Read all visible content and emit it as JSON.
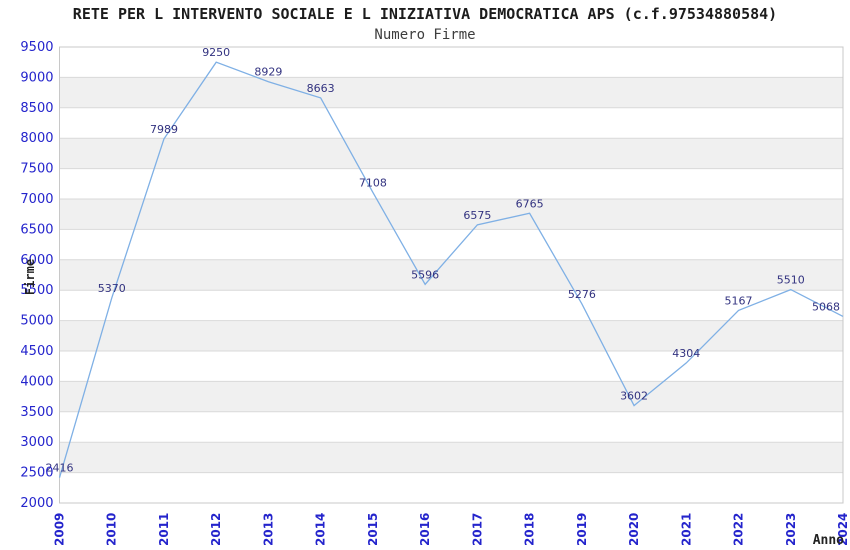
{
  "title": "RETE PER L INTERVENTO SOCIALE E L INIZIATIVA DEMOCRATICA APS (c.f.97534880584)",
  "subtitle": "Numero Firme",
  "chart_data": {
    "type": "line",
    "title": "RETE PER L INTERVENTO SOCIALE E L INIZIATIVA DEMOCRATICA APS (c.f.97534880584)",
    "subtitle": "Numero Firme",
    "xlabel": "Anno",
    "ylabel": "Firme",
    "x": [
      "2009",
      "2010",
      "2011",
      "2012",
      "2013",
      "2014",
      "2015",
      "2016",
      "2017",
      "2018",
      "2019",
      "2020",
      "2021",
      "2022",
      "2023",
      "2024"
    ],
    "series": [
      {
        "name": "Numero Firme",
        "values": [
          2416,
          5370,
          7989,
          9250,
          8929,
          8663,
          7108,
          5596,
          6575,
          6765,
          5276,
          3602,
          4304,
          5167,
          5510,
          5068
        ]
      }
    ],
    "data_labels_visible": true,
    "ylim": [
      2000,
      9500
    ],
    "yticks": [
      2000,
      2500,
      3000,
      3500,
      4000,
      4500,
      5000,
      5500,
      6000,
      6500,
      7000,
      7500,
      8000,
      8500,
      9000,
      9500
    ],
    "grid": true,
    "legend_position": "none",
    "colors": {
      "line": "#7fb0e5",
      "tick_label": "#2424cc",
      "data_label": "#333380",
      "grid_line": "#d9d9d9",
      "band_alt": "#f0f0f0",
      "band_main": "#ffffff",
      "plot_border": "#c8c8c8",
      "title_text": "#1c1c1c",
      "axis_title_text": "#222222"
    }
  }
}
